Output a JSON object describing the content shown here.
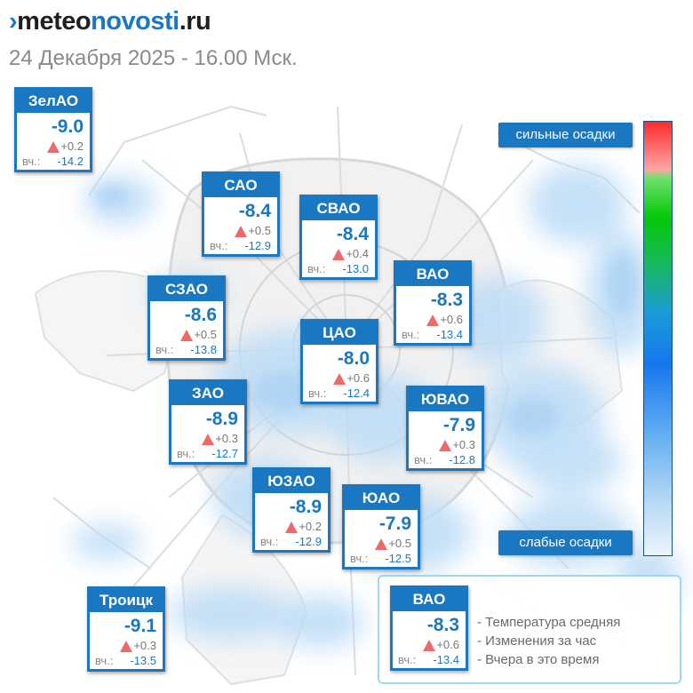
{
  "header": {
    "logo_mark": "›",
    "logo_part1": "meteo",
    "logo_part2": "novosti",
    "logo_part3": ".ru",
    "subtitle": "24 Декабря 2025 - 16.00 Мск."
  },
  "districts": [
    {
      "name": "ЗелАО",
      "temp": "-9.0",
      "change": "+0.2",
      "yesterday_label": "вч.:",
      "yesterday": "-14.2"
    },
    {
      "name": "САО",
      "temp": "-8.4",
      "change": "+0.5",
      "yesterday_label": "вч.:",
      "yesterday": "-12.9"
    },
    {
      "name": "СВАО",
      "temp": "-8.4",
      "change": "+0.4",
      "yesterday_label": "вч.:",
      "yesterday": "-13.0"
    },
    {
      "name": "ВАО",
      "temp": "-8.3",
      "change": "+0.6",
      "yesterday_label": "вч.:",
      "yesterday": "-13.4"
    },
    {
      "name": "СЗАО",
      "temp": "-8.6",
      "change": "+0.5",
      "yesterday_label": "вч.:",
      "yesterday": "-13.8"
    },
    {
      "name": "ЦАО",
      "temp": "-8.0",
      "change": "+0.6",
      "yesterday_label": "вч.:",
      "yesterday": "-12.4"
    },
    {
      "name": "ЗАО",
      "temp": "-8.9",
      "change": "+0.3",
      "yesterday_label": "вч.:",
      "yesterday": "-12.7"
    },
    {
      "name": "ЮВАО",
      "temp": "-7.9",
      "change": "+0.3",
      "yesterday_label": "вч.:",
      "yesterday": "-12.8"
    },
    {
      "name": "ЮЗАО",
      "temp": "-8.9",
      "change": "+0.2",
      "yesterday_label": "вч.:",
      "yesterday": "-12.9"
    },
    {
      "name": "ЮАО",
      "temp": "-7.9",
      "change": "+0.5",
      "yesterday_label": "вч.:",
      "yesterday": "-12.5"
    },
    {
      "name": "Троицк",
      "temp": "-9.1",
      "change": "+0.3",
      "yesterday_label": "вч.:",
      "yesterday": "-13.5"
    }
  ],
  "precip_scale": {
    "top_label": "сильные осадки",
    "bottom_label": "слабые осадки"
  },
  "legend": {
    "sample": {
      "name": "ВАО",
      "temp": "-8.3",
      "change": "+0.6",
      "yesterday_label": "вч.:",
      "yesterday": "-13.4"
    },
    "line1": "- Температура средняя",
    "line2": "- Изменения за час",
    "line3": "- Вчера в это время"
  },
  "colors": {
    "accent": "#1a78c2",
    "change_up": "#ee6a6a",
    "precip_light": "#bcdcf6"
  }
}
